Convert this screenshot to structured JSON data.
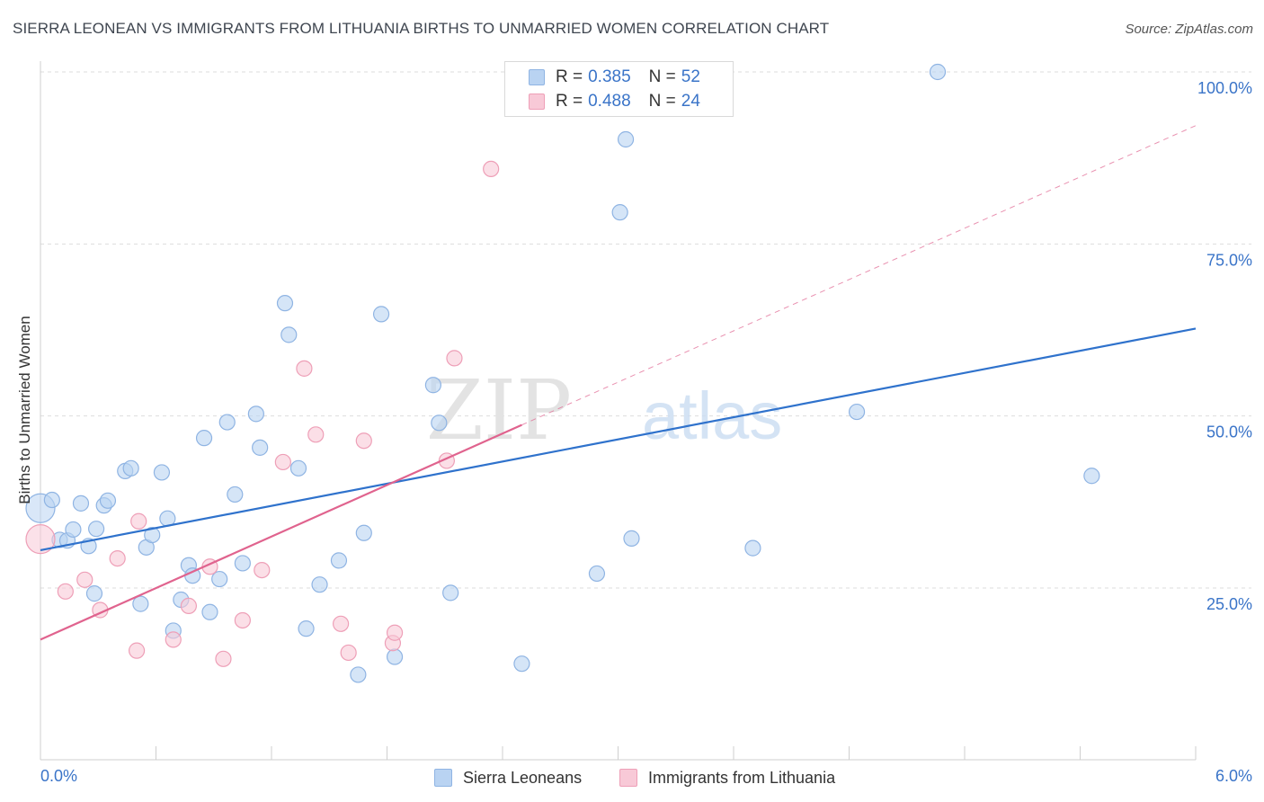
{
  "title": "SIERRA LEONEAN VS IMMIGRANTS FROM LITHUANIA BIRTHS TO UNMARRIED WOMEN CORRELATION CHART",
  "source": "Source: ZipAtlas.com",
  "watermark": {
    "part1": "ZIP",
    "part2": "atlas"
  },
  "legend": {
    "r_label": "R =",
    "n_label": "N =",
    "rows": [
      {
        "r": "0.385",
        "n": "52"
      },
      {
        "r": "0.488",
        "n": "24"
      }
    ]
  },
  "colors": {
    "blue_fill": "#b9d3f2",
    "blue_stroke": "#8fb4e3",
    "blue_line": "#2f72cc",
    "pink_fill": "#f8c9d7",
    "pink_stroke": "#ee9fb7",
    "pink_line": "#e0638e",
    "axis_text": "#3a74c8",
    "grid": "#dddddd"
  },
  "chart_data": {
    "type": "scatter",
    "title": "SIERRA LEONEAN VS IMMIGRANTS FROM LITHUANIA BIRTHS TO UNMARRIED WOMEN CORRELATION CHART",
    "xlabel": "",
    "ylabel": "Births to Unmarried Women",
    "xlim": [
      0,
      6
    ],
    "ylim": [
      0,
      100
    ],
    "x_tick_labels": [
      "0.0%",
      "6.0%"
    ],
    "y_tick_labels": [
      "25.0%",
      "50.0%",
      "75.0%",
      "100.0%"
    ],
    "y_ticks": [
      25,
      50,
      75,
      100
    ],
    "grid": true,
    "legend_position": "top-center",
    "series": [
      {
        "name": "Sierra Leoneans",
        "color": "blue",
        "r": 0.385,
        "n": 52,
        "trend": {
          "x": [
            0,
            6
          ],
          "y": [
            30.5,
            62.7
          ],
          "dashed_extension": false
        },
        "points": [
          {
            "x": 0.0,
            "y": 36.6,
            "big": true
          },
          {
            "x": 0.06,
            "y": 37.8
          },
          {
            "x": 0.1,
            "y": 32.0
          },
          {
            "x": 0.14,
            "y": 31.9
          },
          {
            "x": 0.17,
            "y": 33.5
          },
          {
            "x": 0.21,
            "y": 37.3
          },
          {
            "x": 0.25,
            "y": 31.1
          },
          {
            "x": 0.28,
            "y": 24.2
          },
          {
            "x": 0.29,
            "y": 33.6
          },
          {
            "x": 0.33,
            "y": 37.0
          },
          {
            "x": 0.35,
            "y": 37.7
          },
          {
            "x": 0.44,
            "y": 42.0
          },
          {
            "x": 0.47,
            "y": 42.4
          },
          {
            "x": 0.52,
            "y": 22.7
          },
          {
            "x": 0.55,
            "y": 30.9
          },
          {
            "x": 0.58,
            "y": 32.7
          },
          {
            "x": 0.63,
            "y": 41.8
          },
          {
            "x": 0.66,
            "y": 35.1
          },
          {
            "x": 0.69,
            "y": 18.8
          },
          {
            "x": 0.73,
            "y": 23.3
          },
          {
            "x": 0.77,
            "y": 28.3
          },
          {
            "x": 0.79,
            "y": 26.8
          },
          {
            "x": 0.85,
            "y": 46.8
          },
          {
            "x": 0.88,
            "y": 21.5
          },
          {
            "x": 0.93,
            "y": 26.3
          },
          {
            "x": 0.97,
            "y": 49.1
          },
          {
            "x": 1.01,
            "y": 38.6
          },
          {
            "x": 1.05,
            "y": 28.6
          },
          {
            "x": 1.12,
            "y": 50.3
          },
          {
            "x": 1.14,
            "y": 45.4
          },
          {
            "x": 1.27,
            "y": 66.4
          },
          {
            "x": 1.29,
            "y": 61.8
          },
          {
            "x": 1.34,
            "y": 42.4
          },
          {
            "x": 1.38,
            "y": 19.1
          },
          {
            "x": 1.45,
            "y": 25.5
          },
          {
            "x": 1.55,
            "y": 29.0
          },
          {
            "x": 1.65,
            "y": 12.4
          },
          {
            "x": 1.68,
            "y": 33.0
          },
          {
            "x": 1.77,
            "y": 64.8
          },
          {
            "x": 1.84,
            "y": 15.0
          },
          {
            "x": 2.04,
            "y": 54.5
          },
          {
            "x": 2.07,
            "y": 49.0
          },
          {
            "x": 2.13,
            "y": 24.3
          },
          {
            "x": 2.5,
            "y": 14.0
          },
          {
            "x": 2.89,
            "y": 27.1
          },
          {
            "x": 3.01,
            "y": 79.6
          },
          {
            "x": 3.04,
            "y": 90.2
          },
          {
            "x": 3.07,
            "y": 32.2
          },
          {
            "x": 3.7,
            "y": 30.8
          },
          {
            "x": 4.24,
            "y": 50.6
          },
          {
            "x": 4.66,
            "y": 100.0
          },
          {
            "x": 5.46,
            "y": 41.3
          }
        ]
      },
      {
        "name": "Immigrants from Lithuania",
        "color": "pink",
        "r": 0.488,
        "n": 24,
        "trend": {
          "x": [
            0,
            2.5
          ],
          "y": [
            17.5,
            48.7
          ],
          "dashed_extension": {
            "x": [
              2.5,
              6
            ],
            "y": [
              48.7,
              92.2
            ]
          }
        },
        "points": [
          {
            "x": 0.0,
            "y": 32.1,
            "big": true
          },
          {
            "x": 0.13,
            "y": 24.5
          },
          {
            "x": 0.23,
            "y": 26.2
          },
          {
            "x": 0.31,
            "y": 21.8
          },
          {
            "x": 0.4,
            "y": 29.3
          },
          {
            "x": 0.5,
            "y": 15.9
          },
          {
            "x": 0.51,
            "y": 34.7
          },
          {
            "x": 0.69,
            "y": 17.5
          },
          {
            "x": 0.77,
            "y": 22.4
          },
          {
            "x": 0.88,
            "y": 28.1
          },
          {
            "x": 0.95,
            "y": 14.7
          },
          {
            "x": 1.05,
            "y": 20.3
          },
          {
            "x": 1.15,
            "y": 27.6
          },
          {
            "x": 1.26,
            "y": 43.3
          },
          {
            "x": 1.37,
            "y": 56.9
          },
          {
            "x": 1.43,
            "y": 47.3
          },
          {
            "x": 1.56,
            "y": 19.8
          },
          {
            "x": 1.6,
            "y": 15.6
          },
          {
            "x": 1.68,
            "y": 46.4
          },
          {
            "x": 1.83,
            "y": 17.0
          },
          {
            "x": 1.84,
            "y": 18.5
          },
          {
            "x": 2.11,
            "y": 43.5
          },
          {
            "x": 2.15,
            "y": 58.4
          },
          {
            "x": 2.34,
            "y": 85.9
          }
        ]
      }
    ]
  }
}
